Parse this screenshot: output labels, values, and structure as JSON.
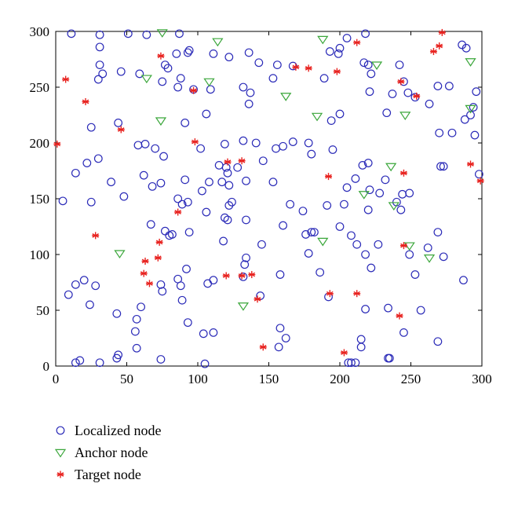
{
  "chart_data": {
    "type": "scatter",
    "title": "",
    "xlabel": "",
    "ylabel": "",
    "xlim": [
      0,
      300
    ],
    "ylim": [
      0,
      300
    ],
    "xticks": [
      "0",
      "50",
      "100",
      "150",
      "200",
      "250",
      "300"
    ],
    "yticks": [
      "0",
      "50",
      "100",
      "150",
      "200",
      "250",
      "300"
    ],
    "grid": false,
    "legend_position": "bottom-left, below plot",
    "series": [
      {
        "name": "Localized node",
        "marker": "circle",
        "color": "#2b2bb8",
        "points": [
          [
            11,
            298
          ],
          [
            31,
            297
          ],
          [
            51,
            298
          ],
          [
            64,
            297
          ],
          [
            87,
            298
          ],
          [
            31,
            286
          ],
          [
            31,
            270
          ],
          [
            33,
            262
          ],
          [
            30,
            257
          ],
          [
            46,
            264
          ],
          [
            59,
            262
          ],
          [
            75,
            255
          ],
          [
            77,
            270
          ],
          [
            79,
            267
          ],
          [
            85,
            280
          ],
          [
            88,
            258
          ],
          [
            86,
            250
          ],
          [
            93,
            281
          ],
          [
            94,
            283
          ],
          [
            97,
            248
          ],
          [
            111,
            280
          ],
          [
            109,
            248
          ],
          [
            106,
            226
          ],
          [
            122,
            277
          ],
          [
            132,
            250
          ],
          [
            137,
            245
          ],
          [
            136,
            235
          ],
          [
            136,
            281
          ],
          [
            143,
            272
          ],
          [
            153,
            258
          ],
          [
            156,
            270
          ],
          [
            167,
            269
          ],
          [
            193,
            282
          ],
          [
            189,
            258
          ],
          [
            199,
            280
          ],
          [
            200,
            285
          ],
          [
            205,
            294
          ],
          [
            218,
            298
          ],
          [
            217,
            272
          ],
          [
            220,
            270
          ],
          [
            222,
            262
          ],
          [
            221,
            246
          ],
          [
            237,
            244
          ],
          [
            242,
            270
          ],
          [
            245,
            255
          ],
          [
            248,
            245
          ],
          [
            253,
            241
          ],
          [
            263,
            235
          ],
          [
            269,
            251
          ],
          [
            277,
            251
          ],
          [
            286,
            288
          ],
          [
            289,
            285
          ],
          [
            296,
            246
          ],
          [
            294,
            232
          ],
          [
            292,
            225
          ],
          [
            288,
            221
          ],
          [
            295,
            207
          ],
          [
            279,
            209
          ],
          [
            270,
            209
          ],
          [
            273,
            179
          ],
          [
            298,
            172
          ],
          [
            194,
            220
          ],
          [
            195,
            194
          ],
          [
            200,
            226
          ],
          [
            233,
            227
          ],
          [
            25,
            214
          ],
          [
            44,
            218
          ],
          [
            5,
            148
          ],
          [
            14,
            173
          ],
          [
            22,
            182
          ],
          [
            25,
            147
          ],
          [
            39,
            165
          ],
          [
            30,
            186
          ],
          [
            48,
            152
          ],
          [
            58,
            198
          ],
          [
            62,
            171
          ],
          [
            63,
            199
          ],
          [
            68,
            161
          ],
          [
            70,
            195
          ],
          [
            74,
            164
          ],
          [
            76,
            188
          ],
          [
            86,
            150
          ],
          [
            89,
            145
          ],
          [
            91,
            218
          ],
          [
            91,
            167
          ],
          [
            93,
            147
          ],
          [
            102,
            195
          ],
          [
            103,
            157
          ],
          [
            106,
            138
          ],
          [
            108,
            165
          ],
          [
            117,
            165
          ],
          [
            115,
            180
          ],
          [
            119,
            199
          ],
          [
            120,
            178
          ],
          [
            121,
            173
          ],
          [
            122,
            162
          ],
          [
            122,
            144
          ],
          [
            124,
            147
          ],
          [
            128,
            178
          ],
          [
            132,
            202
          ],
          [
            134,
            166
          ],
          [
            141,
            200
          ],
          [
            146,
            184
          ],
          [
            153,
            165
          ],
          [
            155,
            195
          ],
          [
            160,
            197
          ],
          [
            167,
            201
          ],
          [
            178,
            200
          ],
          [
            180,
            190
          ],
          [
            191,
            144
          ],
          [
            205,
            160
          ],
          [
            211,
            168
          ],
          [
            216,
            180
          ],
          [
            220,
            182
          ],
          [
            221,
            158
          ],
          [
            220,
            140
          ],
          [
            228,
            155
          ],
          [
            232,
            167
          ],
          [
            240,
            147
          ],
          [
            243,
            140
          ],
          [
            244,
            154
          ],
          [
            249,
            155
          ],
          [
            271,
            179
          ],
          [
            203,
            145
          ],
          [
            14,
            73
          ],
          [
            20,
            77
          ],
          [
            24,
            55
          ],
          [
            28,
            72
          ],
          [
            9,
            64
          ],
          [
            43,
            47
          ],
          [
            56,
            31
          ],
          [
            57,
            16
          ],
          [
            60,
            53
          ],
          [
            67,
            127
          ],
          [
            74,
            73
          ],
          [
            75,
            67
          ],
          [
            77,
            121
          ],
          [
            80,
            117
          ],
          [
            82,
            118
          ],
          [
            86,
            78
          ],
          [
            88,
            72
          ],
          [
            89,
            59
          ],
          [
            92,
            87
          ],
          [
            93,
            39
          ],
          [
            94,
            120
          ],
          [
            104,
            29
          ],
          [
            105,
            2
          ],
          [
            107,
            74
          ],
          [
            111,
            77
          ],
          [
            111,
            30
          ],
          [
            118,
            112
          ],
          [
            119,
            133
          ],
          [
            121,
            131
          ],
          [
            132,
            80
          ],
          [
            133,
            91
          ],
          [
            134,
            131
          ],
          [
            134,
            97
          ],
          [
            144,
            63
          ],
          [
            145,
            109
          ],
          [
            157,
            17
          ],
          [
            158,
            34
          ],
          [
            158,
            82
          ],
          [
            160,
            126
          ],
          [
            162,
            25
          ],
          [
            165,
            145
          ],
          [
            174,
            139
          ],
          [
            176,
            118
          ],
          [
            178,
            101
          ],
          [
            180,
            120
          ],
          [
            182,
            120
          ],
          [
            186,
            84
          ],
          [
            192,
            62
          ],
          [
            200,
            125
          ],
          [
            208,
            117
          ],
          [
            212,
            109
          ],
          [
            215,
            24
          ],
          [
            215,
            17
          ],
          [
            218,
            51
          ],
          [
            218,
            100
          ],
          [
            222,
            88
          ],
          [
            227,
            109
          ],
          [
            234,
            52
          ],
          [
            234,
            7
          ],
          [
            245,
            30
          ],
          [
            249,
            100
          ],
          [
            253,
            82
          ],
          [
            257,
            50
          ],
          [
            262,
            106
          ],
          [
            269,
            120
          ],
          [
            269,
            22
          ],
          [
            287,
            77
          ],
          [
            273,
            98
          ],
          [
            14,
            3
          ],
          [
            17,
            5
          ],
          [
            31,
            3
          ],
          [
            43,
            7
          ],
          [
            44,
            10
          ],
          [
            57,
            42
          ],
          [
            74,
            6
          ],
          [
            206,
            3
          ],
          [
            208,
            3
          ],
          [
            211,
            3
          ],
          [
            235,
            7
          ]
        ]
      },
      {
        "name": "Anchor node",
        "marker": "triangle",
        "color": "#3aa63a",
        "points": [
          [
            75,
            299
          ],
          [
            114,
            291
          ],
          [
            188,
            293
          ],
          [
            226,
            270
          ],
          [
            292,
            273
          ],
          [
            64,
            258
          ],
          [
            108,
            255
          ],
          [
            162,
            242
          ],
          [
            184,
            224
          ],
          [
            74,
            220
          ],
          [
            246,
            225
          ],
          [
            292,
            231
          ],
          [
            236,
            179
          ],
          [
            217,
            154
          ],
          [
            238,
            144
          ],
          [
            45,
            101
          ],
          [
            188,
            112
          ],
          [
            249,
            108
          ],
          [
            263,
            97
          ],
          [
            132,
            54
          ]
        ]
      },
      {
        "name": "Target node",
        "marker": "asterisk",
        "color": "#e8221f",
        "points": [
          [
            7,
            257
          ],
          [
            21,
            237
          ],
          [
            1,
            199
          ],
          [
            46,
            212
          ],
          [
            74,
            278
          ],
          [
            97,
            247
          ],
          [
            98,
            201
          ],
          [
            121,
            183
          ],
          [
            131,
            184
          ],
          [
            169,
            268
          ],
          [
            178,
            267
          ],
          [
            198,
            264
          ],
          [
            212,
            290
          ],
          [
            243,
            255
          ],
          [
            254,
            242
          ],
          [
            266,
            282
          ],
          [
            270,
            287
          ],
          [
            272,
            299
          ],
          [
            292,
            181
          ],
          [
            299,
            166
          ],
          [
            192,
            170
          ],
          [
            245,
            173
          ],
          [
            28,
            117
          ],
          [
            62,
            83
          ],
          [
            63,
            94
          ],
          [
            66,
            74
          ],
          [
            72,
            97
          ],
          [
            73,
            111
          ],
          [
            86,
            138
          ],
          [
            120,
            81
          ],
          [
            131,
            81
          ],
          [
            138,
            82
          ],
          [
            142,
            60
          ],
          [
            146,
            17
          ],
          [
            193,
            65
          ],
          [
            203,
            12
          ],
          [
            212,
            65
          ],
          [
            242,
            45
          ],
          [
            245,
            108
          ]
        ]
      }
    ]
  }
}
